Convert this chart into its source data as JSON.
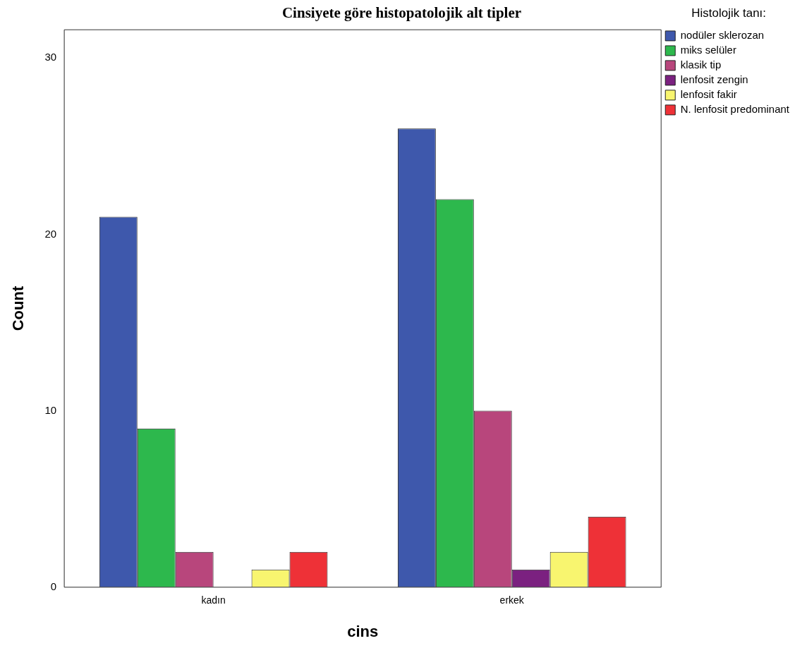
{
  "chart_data": {
    "type": "bar",
    "title": "Cinsiyete göre histopatolojik alt tipler",
    "xlabel": "cins",
    "ylabel": "Count",
    "legend_title": "Histolojik tanı:",
    "categories": [
      "kadın",
      "erkek"
    ],
    "series": [
      {
        "name": "nodüler sklerozan",
        "color": "#3e58ac",
        "values": [
          21,
          26
        ]
      },
      {
        "name": "miks selüler",
        "color": "#2db84d",
        "values": [
          9,
          22
        ]
      },
      {
        "name": "klasik tip",
        "color": "#b8467c",
        "values": [
          2,
          10
        ]
      },
      {
        "name": "lenfosit zengin",
        "color": "#7b2180",
        "values": [
          0,
          1
        ]
      },
      {
        "name": "lenfosit fakir",
        "color": "#f8f56f",
        "values": [
          1,
          2
        ]
      },
      {
        "name": "N. lenfosit predominant",
        "color": "#ee3137",
        "values": [
          2,
          4
        ]
      }
    ],
    "ylim": [
      0,
      31.6
    ],
    "yticks": [
      0,
      10,
      20,
      30
    ],
    "grid": false,
    "legend": "top right"
  }
}
